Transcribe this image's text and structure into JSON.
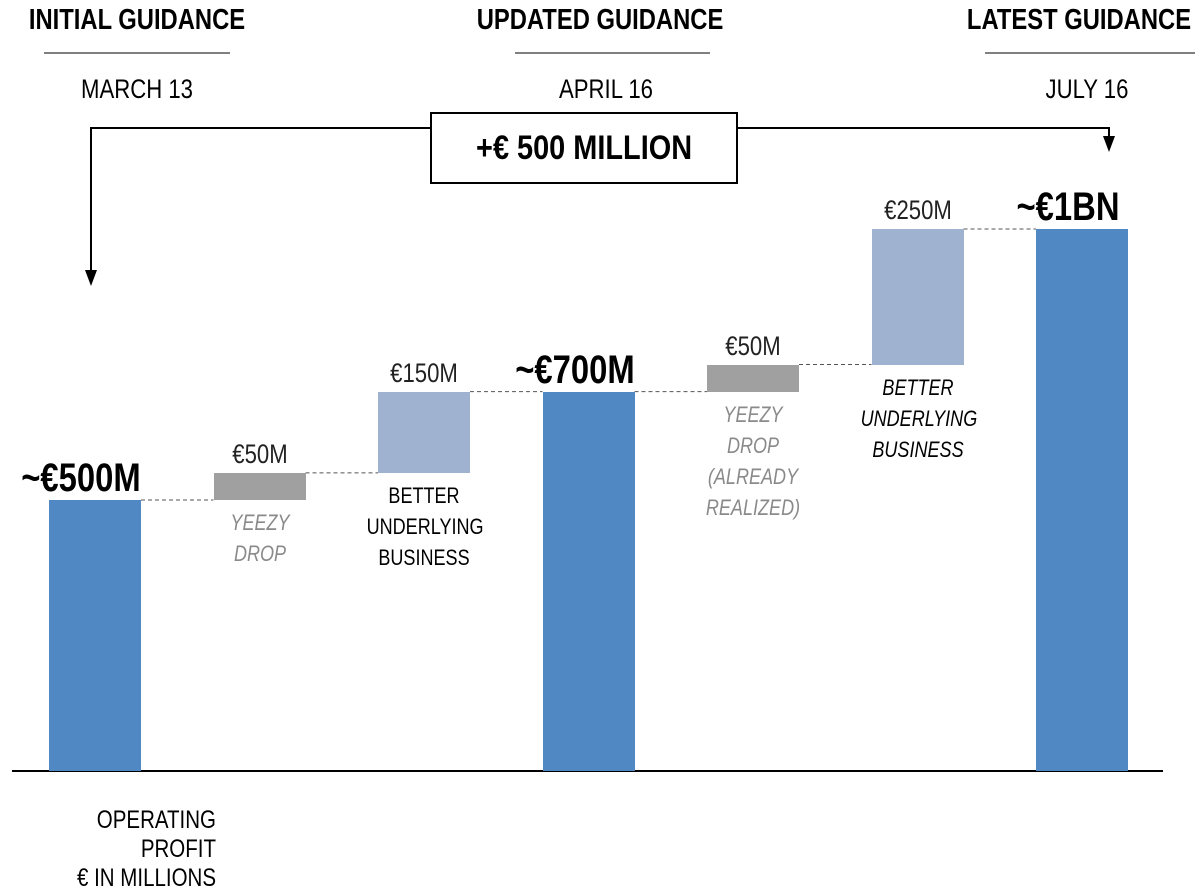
{
  "chart_data": {
    "type": "waterfall",
    "headers": [
      {
        "title": "INITIAL GUIDANCE",
        "date": "MARCH 13"
      },
      {
        "title": "UPDATED GUIDANCE",
        "date": "APRIL 16"
      },
      {
        "title": "LATEST GUIDANCE",
        "date": "JULY 16"
      }
    ],
    "annotation": "+€ 500 MILLION",
    "y_label": "OPERATING PROFIT\n€ IN MILLIONS",
    "categories": [
      null,
      "YEEZY DROP",
      "BETTER UNDERLYING BUSINESS",
      null,
      "YEEZY DROP (ALREADY REALIZED)",
      "BETTER UNDERLYING BUSINESS",
      null
    ],
    "values": [
      500,
      50,
      150,
      700,
      50,
      250,
      1000
    ],
    "value_labels": [
      "~€500M",
      "€50M",
      "€150M",
      "~€700M",
      "€50M",
      "€250M",
      "~€1BN"
    ],
    "is_total": [
      true,
      false,
      false,
      true,
      false,
      false,
      true
    ],
    "colors": [
      "#5088c4",
      "#a0a0a0",
      "#9fb2cf",
      "#5088c4",
      "#a0a0a0",
      "#9fb2cf",
      "#5088c4"
    ]
  }
}
